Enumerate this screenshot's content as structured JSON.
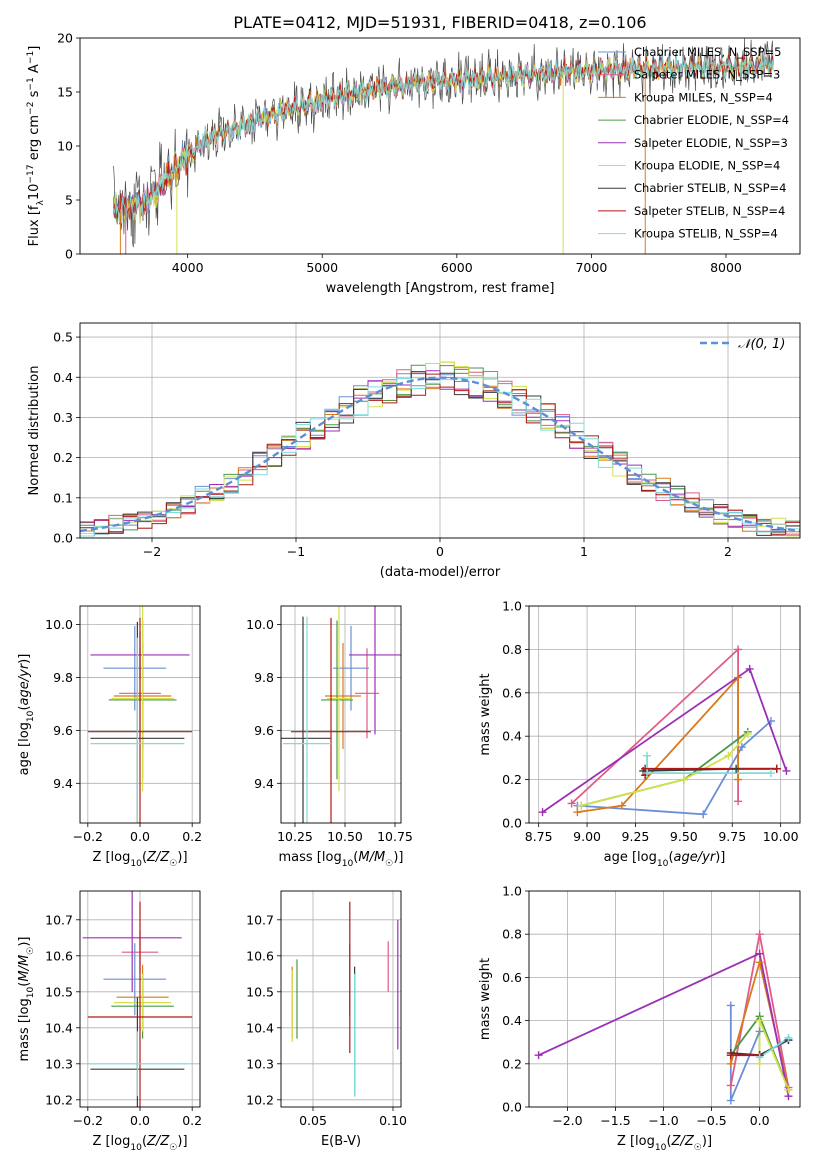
{
  "figure": {
    "title": "PLATE=0412, MJD=51931, FIBERID=0418, z=0.106"
  },
  "chart_data": [
    {
      "id": "spectrum",
      "type": "line",
      "xlabel": "wavelength [Angstrom, rest frame]",
      "ylabel": "Flux [f_λ10^-17 erg cm^-2 s^-1 A^-1]",
      "xlim": [
        3200,
        8550
      ],
      "ylim": [
        0,
        20
      ],
      "xticks": [
        4000,
        5000,
        6000,
        7000,
        8000
      ],
      "yticks": [
        0,
        5,
        10,
        15,
        20
      ],
      "grid": false,
      "legend_position": "top-right",
      "data_range": [
        3450,
        8350
      ],
      "continuum": {
        "x": [
          3450,
          3700,
          3950,
          4150,
          4300,
          4600,
          5000,
          5400,
          5800,
          6200,
          6600,
          7000,
          7500,
          8000,
          8350
        ],
        "y": [
          4.0,
          4.8,
          8.5,
          10.8,
          11.3,
          12.8,
          14.3,
          15.3,
          15.9,
          16.3,
          16.7,
          17.0,
          17.2,
          17.3,
          17.5
        ]
      },
      "dips": [
        {
          "x": 3500,
          "y": 0
        },
        {
          "x": 3540,
          "y": 0
        },
        {
          "x": 3920,
          "y": 0
        },
        {
          "x": 6790,
          "y": 0
        },
        {
          "x": 7400,
          "y": 0
        }
      ],
      "series": [
        {
          "name": "Chabrier MILES, N_SSP=5",
          "color": "#6b8fd6"
        },
        {
          "name": "Salpeter MILES, N_SSP=3",
          "color": "#e05a8a"
        },
        {
          "name": "Kroupa MILES, N_SSP=4",
          "color": "#d97a1f"
        },
        {
          "name": "Chabrier ELODIE, N_SSP=4",
          "color": "#4a9a4a"
        },
        {
          "name": "Salpeter ELODIE, N_SSP=3",
          "color": "#9b30b5"
        },
        {
          "name": "Kroupa ELODIE, N_SSP=4",
          "color": "#d4e04a"
        },
        {
          "name": "Chabrier STELIB, N_SSP=4",
          "color": "#3a3a3a"
        },
        {
          "name": "Salpeter STELIB, N_SSP=4",
          "color": "#b01818"
        },
        {
          "name": "Kroupa STELIB, N_SSP=4",
          "color": "#7fdcdc"
        }
      ]
    },
    {
      "id": "residuals",
      "type": "line",
      "xlabel": "(data-model)/error",
      "ylabel": "Normed distribution",
      "xlim": [
        -2.5,
        2.5
      ],
      "ylim": [
        0,
        0.535
      ],
      "xticks": [
        -2,
        -1,
        0,
        1,
        2
      ],
      "yticks": [
        0.0,
        0.1,
        0.2,
        0.3,
        0.4,
        0.5
      ],
      "grid": true,
      "legend_position": "top-right",
      "normal_curve": {
        "name": "𝒩(0, 1)",
        "color": "#5b8fd6",
        "style": "dashed"
      },
      "bin_edges": [
        -2.5,
        -2.4,
        -2.3,
        -2.2,
        -2.1,
        -2.0,
        -1.9,
        -1.8,
        -1.7,
        -1.6,
        -1.5,
        -1.4,
        -1.3,
        -1.2,
        -1.1,
        -1.0,
        -0.9,
        -0.8,
        -0.7,
        -0.6,
        -0.5,
        -0.4,
        -0.3,
        -0.2,
        -0.1,
        0.0,
        0.1,
        0.2,
        0.3,
        0.4,
        0.5,
        0.6,
        0.7,
        0.8,
        0.9,
        1.0,
        1.1,
        1.2,
        1.3,
        1.4,
        1.5,
        1.6,
        1.7,
        1.8,
        1.9,
        2.0,
        2.1,
        2.2,
        2.3,
        2.4,
        2.5
      ],
      "noise_amplitude": 0.04
    },
    {
      "id": "age-vs-z",
      "type": "errorbar",
      "xlabel": "Z [log10(Z/Z☉)]",
      "ylabel": "age [log10(age/yr)]",
      "xlim": [
        -0.23,
        0.23
      ],
      "ylim": [
        9.25,
        10.07
      ],
      "xticks": [
        -0.2,
        0.0,
        0.2
      ],
      "yticks": [
        9.4,
        9.6,
        9.8,
        10.0
      ],
      "grid": true,
      "points": [
        {
          "series": 0,
          "x": -0.02,
          "y": 9.835,
          "xerr": 0.12,
          "yerr": 0.16
        },
        {
          "series": 1,
          "x": 0.0,
          "y": 9.74,
          "xerr": 0.08,
          "yerr": 0.17
        },
        {
          "series": 2,
          "x": 0.01,
          "y": 9.73,
          "xerr": 0.11,
          "yerr": 0.2
        },
        {
          "series": 3,
          "x": 0.01,
          "y": 9.715,
          "xerr": 0.13,
          "yerr": 0.3
        },
        {
          "series": 4,
          "x": 0.0,
          "y": 9.885,
          "xerr": 0.19,
          "yerr": 0.09
        },
        {
          "series": 5,
          "x": 0.01,
          "y": 9.72,
          "xerr": 0.12,
          "yerr": 0.35
        },
        {
          "series": 6,
          "x": -0.01,
          "y": 9.57,
          "xerr": 0.18,
          "yerr": 0.44
        },
        {
          "series": 7,
          "x": 0.0,
          "y": 9.595,
          "xerr": 0.2,
          "yerr": 0.43
        },
        {
          "series": 8,
          "x": -0.01,
          "y": 9.55,
          "xerr": 0.18,
          "yerr": 0.4
        }
      ]
    },
    {
      "id": "age-vs-mass",
      "type": "errorbar",
      "xlabel": "mass [log10(M/M☉)]",
      "ylabel": "",
      "xlim": [
        10.18,
        10.78
      ],
      "ylim": [
        9.25,
        10.07
      ],
      "xticks": [
        10.25,
        10.5,
        10.75
      ],
      "yticks": [
        9.4,
        9.6,
        9.8,
        10.0
      ],
      "grid": true,
      "points": [
        {
          "series": 0,
          "x": 10.53,
          "y": 9.835,
          "xerr": 0.09,
          "yerr": 0.16
        },
        {
          "series": 1,
          "x": 10.61,
          "y": 9.74,
          "xerr": 0.06,
          "yerr": 0.17
        },
        {
          "series": 2,
          "x": 10.49,
          "y": 9.73,
          "xerr": 0.09,
          "yerr": 0.2
        },
        {
          "series": 3,
          "x": 10.46,
          "y": 9.715,
          "xerr": 0.08,
          "yerr": 0.3
        },
        {
          "series": 4,
          "x": 10.65,
          "y": 9.885,
          "xerr": 0.13,
          "yerr": 0.3
        },
        {
          "series": 5,
          "x": 10.47,
          "y": 9.72,
          "xerr": 0.06,
          "yerr": 0.35
        },
        {
          "series": 6,
          "x": 10.29,
          "y": 9.57,
          "xerr": 0.14,
          "yerr": 0.46
        },
        {
          "series": 7,
          "x": 10.43,
          "y": 9.595,
          "xerr": 0.2,
          "yerr": 0.43
        },
        {
          "series": 8,
          "x": 10.31,
          "y": 9.55,
          "xerr": 0.12,
          "yerr": 0.48
        }
      ]
    },
    {
      "id": "weight-vs-age",
      "type": "line",
      "xlabel": "age  [log10(age/yr)]",
      "ylabel": "mass weight",
      "xlim": [
        8.7,
        10.1
      ],
      "ylim": [
        0,
        1
      ],
      "xticks": [
        8.75,
        9.0,
        9.25,
        9.5,
        9.75,
        10.0
      ],
      "yticks": [
        0.0,
        0.2,
        0.4,
        0.6,
        0.8,
        1.0
      ],
      "grid": true,
      "series": [
        {
          "series": 0,
          "x": [
            8.95,
            9.6,
            9.8,
            9.95
          ],
          "y": [
            0.08,
            0.04,
            0.35,
            0.47
          ]
        },
        {
          "series": 1,
          "x": [
            8.92,
            9.78,
            9.78
          ],
          "y": [
            0.09,
            0.8,
            0.1
          ]
        },
        {
          "series": 2,
          "x": [
            8.95,
            9.18,
            9.78,
            9.78
          ],
          "y": [
            0.05,
            0.08,
            0.67,
            0.2
          ]
        },
        {
          "series": 3,
          "x": [
            8.97,
            9.5,
            9.83
          ],
          "y": [
            0.08,
            0.2,
            0.42
          ]
        },
        {
          "series": 4,
          "x": [
            10.03,
            9.84,
            8.77
          ],
          "y": [
            0.24,
            0.71,
            0.05
          ]
        },
        {
          "series": 5,
          "x": [
            8.97,
            9.5,
            9.73,
            9.83
          ],
          "y": [
            0.08,
            0.2,
            0.31,
            0.41
          ]
        },
        {
          "series": 6,
          "x": [
            9.29,
            9.77,
            9.98
          ],
          "y": [
            0.24,
            0.25,
            0.25
          ]
        },
        {
          "series": 7,
          "x": [
            9.3,
            9.3,
            9.98
          ],
          "y": [
            0.22,
            0.25,
            0.25
          ]
        },
        {
          "series": 8,
          "x": [
            9.31,
            9.31,
            9.95
          ],
          "y": [
            0.31,
            0.23,
            0.23
          ]
        }
      ]
    },
    {
      "id": "mass-vs-z",
      "type": "errorbar",
      "xlabel": "Z [log10(Z/Z☉)]",
      "ylabel": "mass [log10(M/M☉)]",
      "xlim": [
        -0.23,
        0.23
      ],
      "ylim": [
        10.18,
        10.78
      ],
      "xticks": [
        -0.2,
        0.0,
        0.2
      ],
      "yticks": [
        10.2,
        10.3,
        10.4,
        10.5,
        10.6,
        10.7
      ],
      "grid": true,
      "points": [
        {
          "series": 0,
          "x": -0.02,
          "y": 10.535,
          "xerr": 0.12,
          "yerr": 0.1
        },
        {
          "series": 1,
          "x": 0.0,
          "y": 10.61,
          "xerr": 0.07,
          "yerr": 0.06
        },
        {
          "series": 2,
          "x": 0.01,
          "y": 10.485,
          "xerr": 0.1,
          "yerr": 0.09
        },
        {
          "series": 3,
          "x": 0.01,
          "y": 10.46,
          "xerr": 0.12,
          "yerr": 0.09
        },
        {
          "series": 4,
          "x": -0.03,
          "y": 10.65,
          "xerr": 0.19,
          "yerr": 0.15
        },
        {
          "series": 5,
          "x": 0.01,
          "y": 10.47,
          "xerr": 0.11,
          "yerr": 0.08
        },
        {
          "series": 6,
          "x": -0.01,
          "y": 10.285,
          "xerr": 0.18,
          "yerr": 0.2
        },
        {
          "series": 7,
          "x": 0.0,
          "y": 10.43,
          "xerr": 0.2,
          "yerr": 0.32
        },
        {
          "series": 8,
          "x": -0.01,
          "y": 10.3,
          "xerr": 0.2,
          "yerr": 0.09
        }
      ]
    },
    {
      "id": "mass-vs-ebv",
      "type": "errorbar",
      "xlabel": "E(B-V)",
      "ylabel": "",
      "xlim": [
        0.03,
        0.105
      ],
      "ylim": [
        10.18,
        10.78
      ],
      "xticks": [
        0.05,
        0.1
      ],
      "yticks": [
        10.2,
        10.3,
        10.4,
        10.5,
        10.6,
        10.7
      ],
      "grid": true,
      "points": [
        {
          "series": 0,
          "x": 0.073,
          "y": 10.535,
          "xerr": 0,
          "yerr": 0.1
        },
        {
          "series": 1,
          "x": 0.097,
          "y": 10.57,
          "xerr": 0,
          "yerr": 0.07
        },
        {
          "series": 2,
          "x": 0.037,
          "y": 10.47,
          "xerr": 0,
          "yerr": 0.1
        },
        {
          "series": 3,
          "x": 0.04,
          "y": 10.48,
          "xerr": 0,
          "yerr": 0.11
        },
        {
          "series": 4,
          "x": 0.103,
          "y": 10.52,
          "xerr": 0,
          "yerr": 0.18
        },
        {
          "series": 5,
          "x": 0.037,
          "y": 10.46,
          "xerr": 0,
          "yerr": 0.1
        },
        {
          "series": 6,
          "x": 0.076,
          "y": 10.39,
          "xerr": 0,
          "yerr": 0.18
        },
        {
          "series": 7,
          "x": 0.073,
          "y": 10.54,
          "xerr": 0,
          "yerr": 0.21
        },
        {
          "series": 8,
          "x": 0.076,
          "y": 10.38,
          "xerr": 0,
          "yerr": 0.17
        }
      ]
    },
    {
      "id": "weight-vs-z",
      "type": "line",
      "xlabel": "Z [log10(Z/Z☉)]",
      "ylabel": "mass weight",
      "xlim": [
        -2.4,
        0.42
      ],
      "ylim": [
        0,
        1
      ],
      "xticks": [
        -2.0,
        -1.5,
        -1.0,
        -0.5,
        0.0
      ],
      "yticks": [
        0.0,
        0.2,
        0.4,
        0.6,
        0.8,
        1.0
      ],
      "grid": true,
      "series": [
        {
          "series": 0,
          "x": [
            -0.3,
            -0.3,
            0.0,
            0.0,
            0.3
          ],
          "y": [
            0.47,
            0.03,
            0.35,
            0.24,
            0.31
          ]
        },
        {
          "series": 1,
          "x": [
            -0.3,
            0.0,
            0.3
          ],
          "y": [
            0.1,
            0.8,
            0.09
          ]
        },
        {
          "series": 2,
          "x": [
            -0.3,
            0.0,
            0.3
          ],
          "y": [
            0.2,
            0.67,
            0.08
          ]
        },
        {
          "series": 3,
          "x": [
            -0.3,
            0.0,
            0.3
          ],
          "y": [
            0.24,
            0.42,
            0.08
          ]
        },
        {
          "series": 4,
          "x": [
            -2.3,
            0.0,
            0.3
          ],
          "y": [
            0.24,
            0.71,
            0.05
          ]
        },
        {
          "series": 5,
          "x": [
            0.0,
            0.0,
            0.3
          ],
          "y": [
            0.2,
            0.4,
            0.08
          ]
        },
        {
          "series": 6,
          "x": [
            -0.3,
            0.0,
            0.3
          ],
          "y": [
            0.25,
            0.24,
            0.31
          ]
        },
        {
          "series": 7,
          "x": [
            -0.3,
            0.0
          ],
          "y": [
            0.24,
            0.24
          ]
        },
        {
          "series": 8,
          "x": [
            0.0,
            0.3
          ],
          "y": [
            0.23,
            0.32
          ]
        }
      ]
    }
  ]
}
